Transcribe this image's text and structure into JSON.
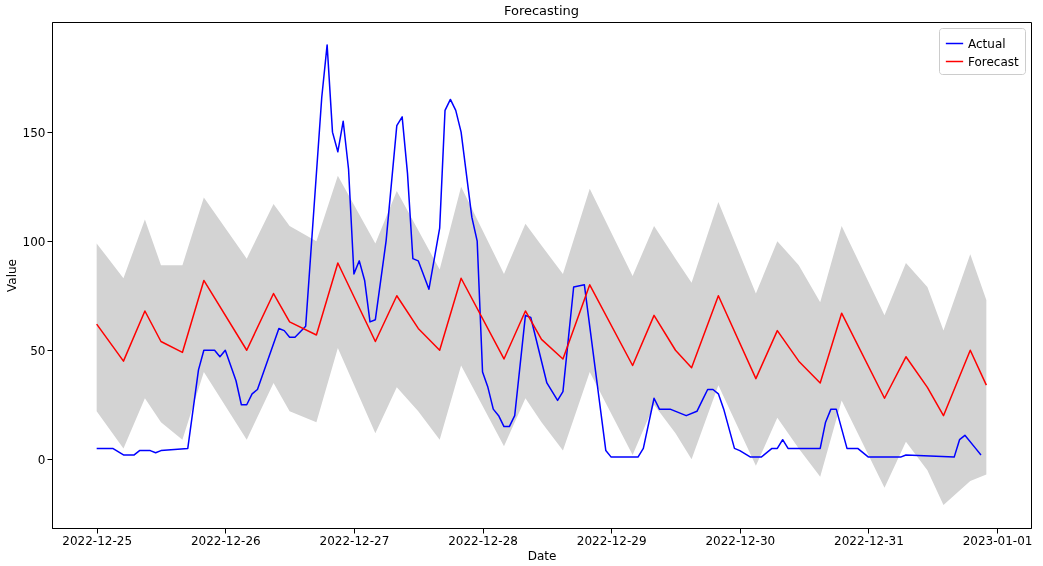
{
  "chart_data": {
    "type": "line",
    "title": "Forecasting",
    "xlabel": "Date",
    "ylabel": "Value",
    "xlim": [
      "2022-12-24T15:40",
      "2023-01-01T06:20"
    ],
    "xticks": [
      {
        "value": "2022-12-25",
        "label": "2022-12-25"
      },
      {
        "value": "2022-12-26",
        "label": "2022-12-26"
      },
      {
        "value": "2022-12-27",
        "label": "2022-12-27"
      },
      {
        "value": "2022-12-28",
        "label": "2022-12-28"
      },
      {
        "value": "2022-12-29",
        "label": "2022-12-29"
      },
      {
        "value": "2022-12-30",
        "label": "2022-12-30"
      },
      {
        "value": "2022-12-31",
        "label": "2022-12-31"
      },
      {
        "value": "2023-01-01",
        "label": "2023-01-01"
      }
    ],
    "ylim": [
      -31.5,
      200.5
    ],
    "yticks": [
      0,
      50,
      100,
      150
    ],
    "grid": false,
    "legend": "top right",
    "marker": "none",
    "line_style": "solid",
    "series": [
      {
        "name": "Actual",
        "color": "#0000ff",
        "x": [
          "2022-12-25T00:00",
          "2022-12-25T03:00",
          "2022-12-25T05:00",
          "2022-12-25T07:00",
          "2022-12-25T08:00",
          "2022-12-25T10:00",
          "2022-12-25T11:00",
          "2022-12-25T12:00",
          "2022-12-25T17:00",
          "2022-12-25T19:00",
          "2022-12-25T20:00",
          "2022-12-25T22:00",
          "2022-12-25T23:00",
          "2022-12-26T00:00",
          "2022-12-26T02:00",
          "2022-12-26T03:00",
          "2022-12-26T04:00",
          "2022-12-26T05:00",
          "2022-12-26T06:00",
          "2022-12-26T10:00",
          "2022-12-26T11:00",
          "2022-12-26T12:00",
          "2022-12-26T13:00",
          "2022-12-26T15:00",
          "2022-12-26T18:00",
          "2022-12-26T19:00",
          "2022-12-26T20:00",
          "2022-12-26T21:00",
          "2022-12-26T22:00",
          "2022-12-26T23:00",
          "2022-12-27T00:00",
          "2022-12-27T01:00",
          "2022-12-27T02:00",
          "2022-12-27T03:00",
          "2022-12-27T04:00",
          "2022-12-27T06:00",
          "2022-12-27T08:00",
          "2022-12-27T09:00",
          "2022-12-27T10:00",
          "2022-12-27T11:00",
          "2022-12-27T12:00",
          "2022-12-27T14:00",
          "2022-12-27T16:00",
          "2022-12-27T17:00",
          "2022-12-27T18:00",
          "2022-12-27T19:00",
          "2022-12-27T20:00",
          "2022-12-27T22:00",
          "2022-12-27T23:00",
          "2022-12-28T00:00",
          "2022-12-28T01:00",
          "2022-12-28T02:00",
          "2022-12-28T03:00",
          "2022-12-28T04:00",
          "2022-12-28T05:00",
          "2022-12-28T06:00",
          "2022-12-28T08:00",
          "2022-12-28T09:00",
          "2022-12-28T12:00",
          "2022-12-28T14:00",
          "2022-12-28T15:00",
          "2022-12-28T17:00",
          "2022-12-28T19:00",
          "2022-12-28T23:00",
          "2022-12-29T00:00",
          "2022-12-29T05:00",
          "2022-12-29T06:00",
          "2022-12-29T08:00",
          "2022-12-29T09:00",
          "2022-12-29T11:00",
          "2022-12-29T14:00",
          "2022-12-29T16:00",
          "2022-12-29T17:00",
          "2022-12-29T18:00",
          "2022-12-29T19:00",
          "2022-12-29T20:00",
          "2022-12-29T21:00",
          "2022-12-29T23:00",
          "2022-12-30T00:00",
          "2022-12-30T02:00",
          "2022-12-30T04:00",
          "2022-12-30T06:00",
          "2022-12-30T07:00",
          "2022-12-30T08:00",
          "2022-12-30T09:00",
          "2022-12-30T15:00",
          "2022-12-30T16:00",
          "2022-12-30T17:00",
          "2022-12-30T18:00",
          "2022-12-30T20:00",
          "2022-12-30T22:00",
          "2022-12-31T00:00",
          "2022-12-31T06:00",
          "2022-12-31T07:00",
          "2022-12-31T16:00",
          "2022-12-31T17:00",
          "2022-12-31T18:00",
          "2022-12-31T20:00",
          "2022-12-31T21:00"
        ],
        "values": [
          5,
          5,
          2,
          2,
          4,
          4,
          3,
          4,
          5,
          41,
          50,
          50,
          47,
          50,
          36,
          25,
          25,
          30,
          32,
          60,
          59,
          56,
          56,
          61,
          166,
          190,
          150,
          141,
          155,
          133,
          85,
          91,
          82,
          63,
          64,
          100,
          153,
          157,
          131,
          92,
          91,
          78,
          106,
          160,
          165,
          160,
          150,
          111,
          100,
          40,
          33,
          23,
          20,
          15,
          15,
          20,
          66,
          65,
          35,
          27,
          31,
          79,
          80,
          4,
          1,
          1,
          5,
          28,
          23,
          23,
          20,
          22,
          27,
          32,
          32,
          30,
          23,
          5,
          4,
          1,
          1,
          5,
          5,
          9,
          5,
          5,
          17,
          23,
          23,
          5,
          5,
          1,
          1,
          2,
          1,
          9,
          11,
          5,
          2
        ]
      },
      {
        "name": "Forecast",
        "color": "#ff0000",
        "x": [
          "2022-12-25T00:00",
          "2022-12-25T05:00",
          "2022-12-25T09:00",
          "2022-12-25T12:00",
          "2022-12-25T16:00",
          "2022-12-25T20:00",
          "2022-12-26T04:00",
          "2022-12-26T09:00",
          "2022-12-26T12:00",
          "2022-12-26T17:00",
          "2022-12-26T21:00",
          "2022-12-27T04:00",
          "2022-12-27T08:00",
          "2022-12-27T12:00",
          "2022-12-27T16:00",
          "2022-12-27T20:00",
          "2022-12-28T04:00",
          "2022-12-28T08:00",
          "2022-12-28T11:00",
          "2022-12-28T15:00",
          "2022-12-28T20:00",
          "2022-12-29T04:00",
          "2022-12-29T08:00",
          "2022-12-29T12:00",
          "2022-12-29T15:00",
          "2022-12-29T20:00",
          "2022-12-30T03:00",
          "2022-12-30T07:00",
          "2022-12-30T11:00",
          "2022-12-30T15:00",
          "2022-12-30T19:00",
          "2022-12-31T03:00",
          "2022-12-31T07:00",
          "2022-12-31T11:00",
          "2022-12-31T14:00",
          "2022-12-31T19:00",
          "2022-12-31T22:00"
        ],
        "values": [
          62,
          45,
          68,
          54,
          49,
          82,
          50,
          76,
          63,
          57,
          90,
          54,
          75,
          60,
          50,
          83,
          46,
          68,
          55,
          46,
          80,
          43,
          66,
          50,
          42,
          75,
          37,
          59,
          45,
          35,
          67,
          28,
          47,
          33,
          20,
          50,
          34
        ],
        "upper": [
          99,
          83,
          110,
          89,
          89,
          120,
          92,
          117,
          107,
          100,
          130,
          99,
          123,
          105,
          87,
          125,
          85,
          108,
          98,
          85,
          124,
          84,
          107,
          92,
          81,
          118,
          76,
          100,
          89,
          72,
          107,
          66,
          90,
          79,
          59,
          94,
          73
        ],
        "lower": [
          22,
          5,
          28,
          17,
          9,
          40,
          9,
          35,
          22,
          17,
          51,
          12,
          33,
          22,
          9,
          43,
          6,
          28,
          17,
          4,
          40,
          2,
          25,
          12,
          0,
          34,
          -3,
          19,
          5,
          -8,
          27,
          -13,
          8,
          -5,
          -21,
          -10,
          -7
        ]
      }
    ]
  }
}
